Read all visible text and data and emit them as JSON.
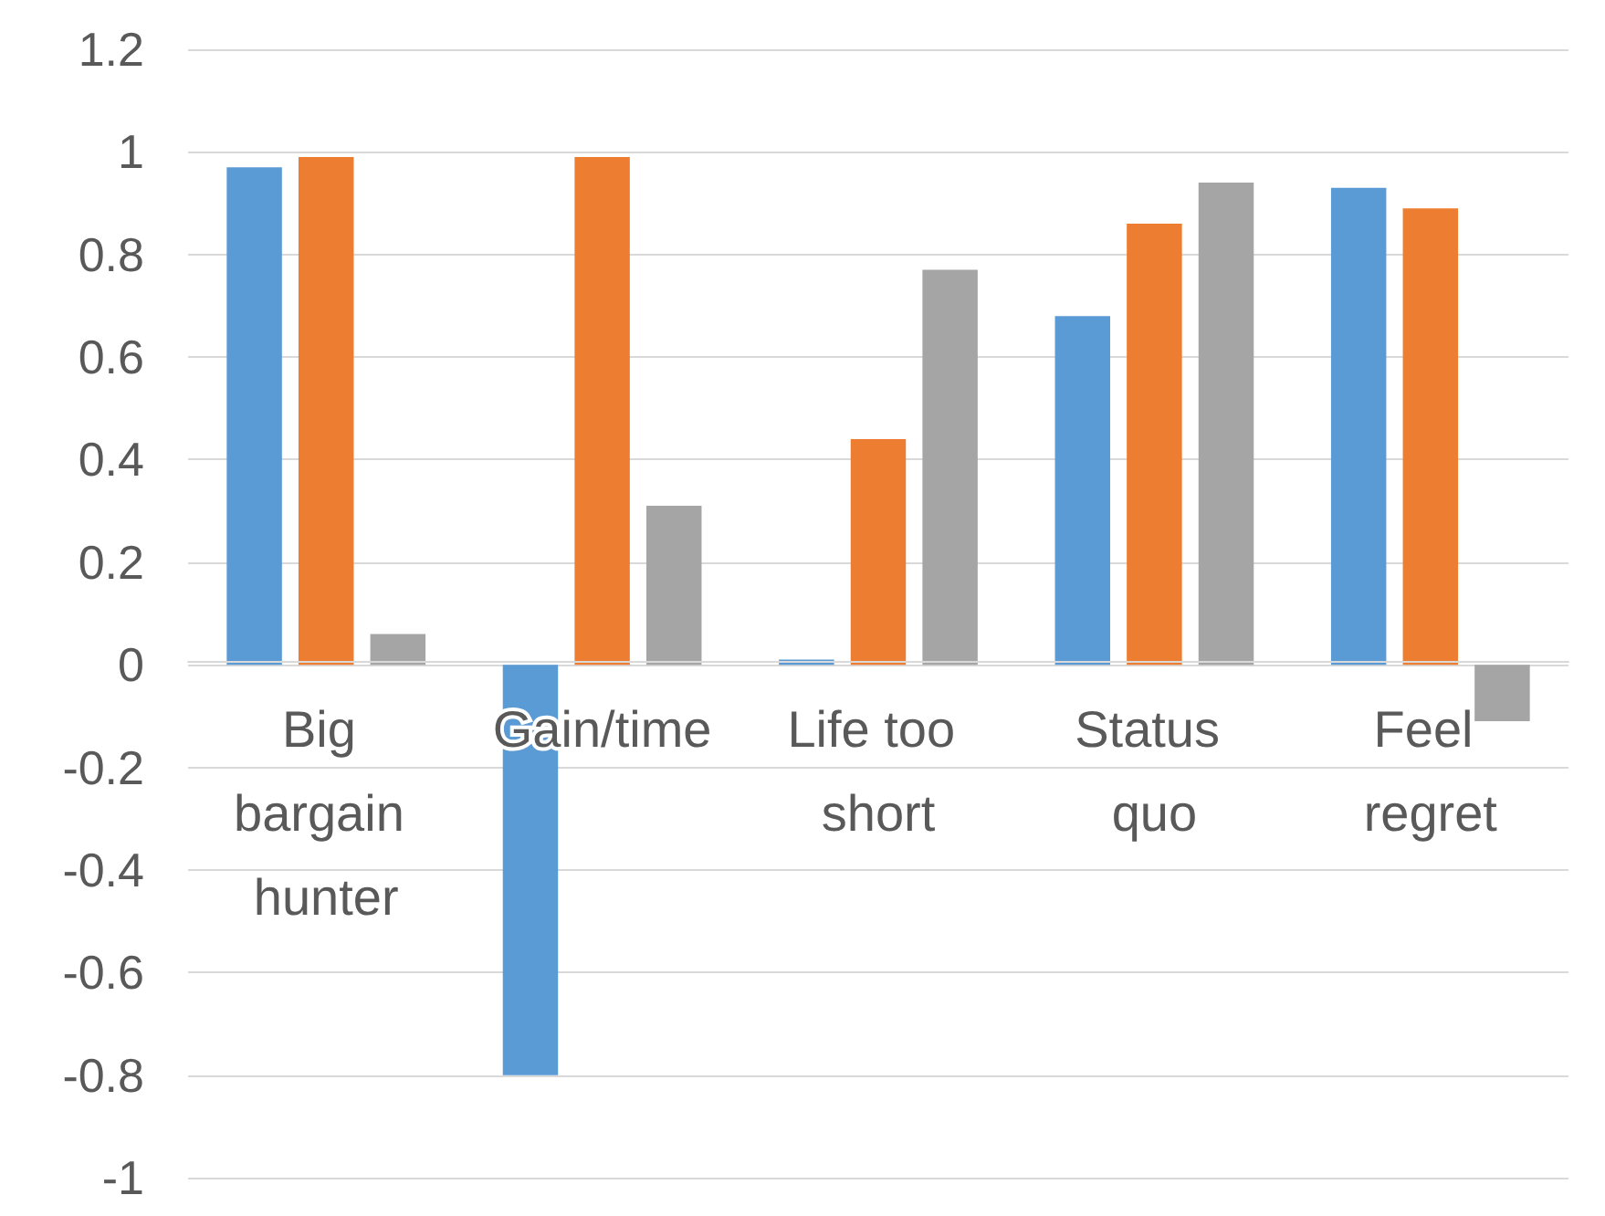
{
  "chart_data": {
    "type": "bar",
    "categories": [
      "Big bargain hunter",
      "Gain/time",
      "Life too short",
      "Status quo",
      "Feel regret"
    ],
    "series": [
      {
        "color": "#5b9bd5",
        "values": [
          0.97,
          -0.8,
          0.01,
          0.68,
          0.93
        ]
      },
      {
        "color": "#ed7d31",
        "values": [
          0.99,
          0.99,
          0.44,
          0.86,
          0.89
        ]
      },
      {
        "color": "#a5a5a5",
        "values": [
          0.06,
          0.31,
          0.77,
          0.94,
          -0.11
        ]
      }
    ],
    "ylim": [
      -1,
      1.2
    ],
    "yticks": [
      -1,
      -0.8,
      -0.6,
      -0.4,
      -0.2,
      0,
      0.2,
      0.4,
      0.6,
      0.8,
      1,
      1.2
    ],
    "grid": true
  }
}
